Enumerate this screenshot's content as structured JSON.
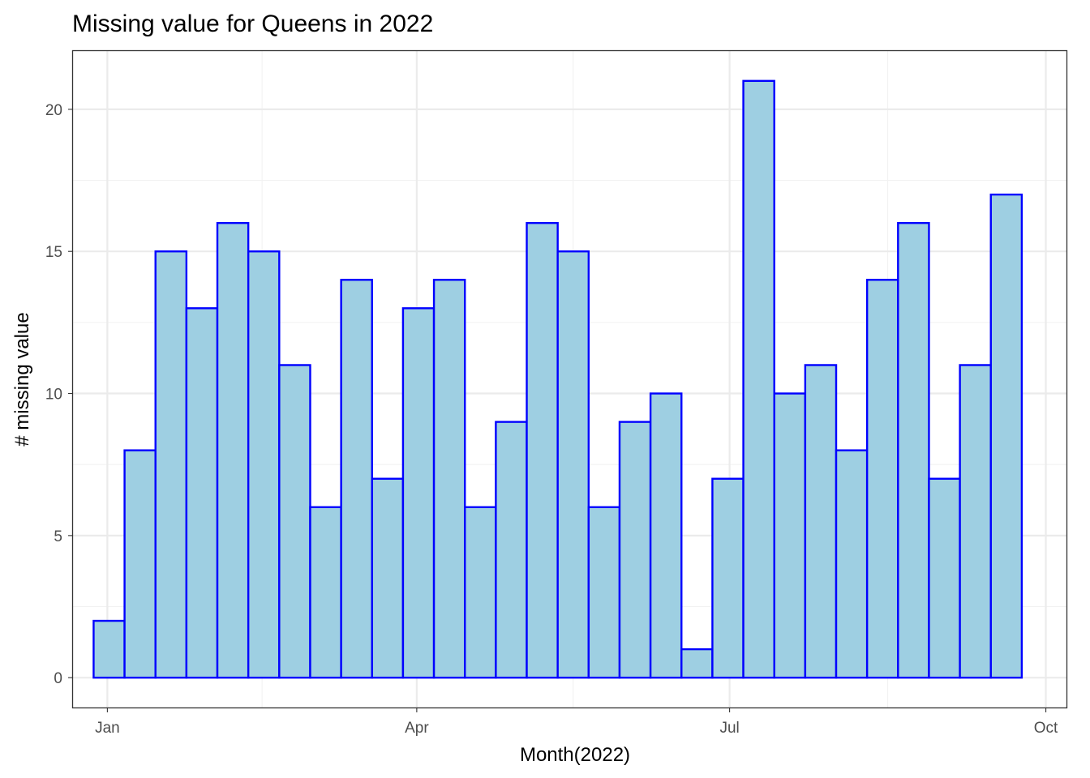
{
  "chart_data": {
    "type": "bar",
    "title": "Missing value for Queens in 2022",
    "xlabel": "Month(2022)",
    "ylabel": "# missing value",
    "x_ticks": [
      "Jan",
      "Apr",
      "Jul",
      "Oct"
    ],
    "x_tick_dates": [
      "2022-01-01",
      "2022-04-01",
      "2022-07-01",
      "2022-10-01"
    ],
    "y_ticks": [
      0,
      5,
      10,
      15,
      20
    ],
    "bin_width_days": 9,
    "bin_starts": [
      "2021-12-28",
      "2022-01-06",
      "2022-01-15",
      "2022-01-24",
      "2022-02-02",
      "2022-02-11",
      "2022-02-20",
      "2022-03-01",
      "2022-03-10",
      "2022-03-19",
      "2022-03-28",
      "2022-04-06",
      "2022-04-15",
      "2022-04-24",
      "2022-05-03",
      "2022-05-12",
      "2022-05-21",
      "2022-05-30",
      "2022-06-08",
      "2022-06-17",
      "2022-06-26",
      "2022-07-05",
      "2022-07-14",
      "2022-07-23",
      "2022-08-01",
      "2022-08-10",
      "2022-08-19",
      "2022-08-28",
      "2022-09-06",
      "2022-09-15",
      "2022-09-24"
    ],
    "values": [
      2,
      8,
      15,
      13,
      16,
      15,
      11,
      6,
      14,
      7,
      13,
      14,
      6,
      9,
      16,
      15,
      6,
      9,
      10,
      1,
      7,
      21,
      10,
      11,
      8,
      14,
      16,
      7,
      11,
      17
    ],
    "xlim": [
      "2021-12-22",
      "2022-10-07"
    ],
    "ylim": [
      -1.05,
      22.05
    ],
    "grid": true,
    "colors": {
      "fill": "#9ecfe2",
      "outline": "#0000ff"
    }
  }
}
